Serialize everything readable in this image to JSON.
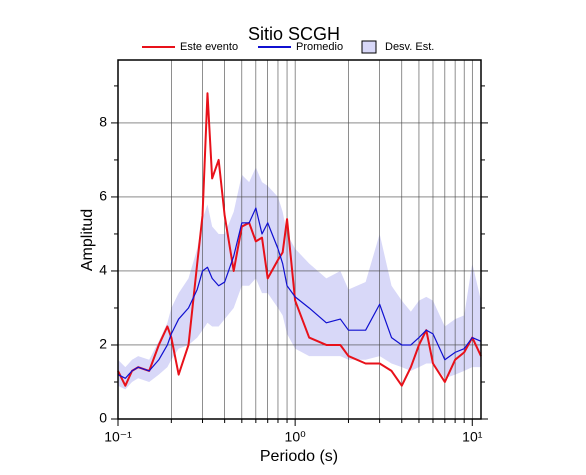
{
  "chart_data": {
    "type": "line",
    "title": "Sitio SCGH",
    "xlabel": "Periodo (s)",
    "ylabel": "Amplitud",
    "xscale": "log",
    "grid": true,
    "xlim": [
      0.1,
      11.2
    ],
    "ylim": [
      0,
      9.7
    ],
    "xticks": [
      {
        "value": 0.1,
        "label": "10⁻¹"
      },
      {
        "value": 1,
        "label": "10⁰"
      },
      {
        "value": 10,
        "label": "10¹"
      }
    ],
    "xminor_ticks": [
      0.2,
      0.3,
      0.4,
      0.5,
      0.6,
      0.7,
      0.8,
      0.9,
      2,
      3,
      4,
      5,
      6,
      7,
      8,
      9
    ],
    "yticks": [
      0,
      2,
      4,
      6,
      8
    ],
    "yminor_ticks": [
      1,
      3,
      5,
      7,
      9
    ],
    "x": [
      0.1,
      0.11,
      0.12,
      0.13,
      0.15,
      0.17,
      0.19,
      0.2,
      0.22,
      0.25,
      0.28,
      0.3,
      0.32,
      0.34,
      0.37,
      0.4,
      0.45,
      0.5,
      0.55,
      0.6,
      0.65,
      0.7,
      0.8,
      0.85,
      0.9,
      1.0,
      1.2,
      1.5,
      1.8,
      2.0,
      2.5,
      3.0,
      3.5,
      4.0,
      4.5,
      5.0,
      5.5,
      6.0,
      7.0,
      8.0,
      9.0,
      10.0,
      11.2
    ],
    "band": {
      "name": "Desv. Est.",
      "color": "#d8d8f8",
      "lower": [
        0.9,
        0.8,
        1.0,
        1.1,
        1.0,
        1.2,
        1.4,
        1.6,
        1.9,
        2.0,
        2.2,
        2.4,
        2.6,
        2.5,
        2.5,
        2.7,
        3.0,
        3.6,
        3.6,
        3.8,
        3.4,
        3.4,
        3.0,
        2.8,
        2.3,
        1.9,
        1.7,
        1.7,
        1.7,
        1.6,
        1.6,
        1.7,
        1.5,
        1.4,
        1.3,
        1.4,
        1.5,
        1.5,
        1.1,
        1.2,
        1.3,
        1.4,
        1.4
      ],
      "upper": [
        1.6,
        1.4,
        1.6,
        1.7,
        1.6,
        2.1,
        2.6,
        3.0,
        3.4,
        3.8,
        4.6,
        5.4,
        5.8,
        5.2,
        5.0,
        5.0,
        5.6,
        6.6,
        6.4,
        6.8,
        6.4,
        6.3,
        6.0,
        5.6,
        5.0,
        4.6,
        4.2,
        3.8,
        4.0,
        3.5,
        3.7,
        5.0,
        3.6,
        3.2,
        2.9,
        3.2,
        3.3,
        3.2,
        2.5,
        2.7,
        2.8,
        4.2,
        3.2
      ]
    },
    "series": [
      {
        "name": "Este evento",
        "color": "#e8111a",
        "values": [
          1.3,
          0.9,
          1.3,
          1.4,
          1.3,
          2.0,
          2.5,
          2.2,
          1.2,
          2.0,
          4.2,
          5.5,
          8.8,
          6.5,
          7.0,
          5.5,
          4.0,
          5.2,
          5.3,
          4.8,
          4.9,
          3.8,
          4.3,
          4.5,
          5.4,
          3.2,
          2.2,
          2.0,
          2.0,
          1.7,
          1.5,
          1.5,
          1.3,
          0.9,
          1.4,
          2.0,
          2.4,
          1.5,
          1.0,
          1.6,
          1.8,
          2.2,
          1.7
        ]
      },
      {
        "name": "Promedio",
        "color": "#1010d0",
        "values": [
          1.2,
          1.1,
          1.3,
          1.4,
          1.3,
          1.6,
          2.0,
          2.3,
          2.7,
          3.0,
          3.5,
          4.0,
          4.1,
          3.8,
          3.6,
          3.7,
          4.4,
          5.3,
          5.3,
          5.7,
          5.0,
          5.3,
          4.6,
          4.2,
          3.6,
          3.3,
          3.0,
          2.6,
          2.7,
          2.4,
          2.4,
          3.1,
          2.2,
          2.0,
          2.0,
          2.2,
          2.4,
          2.3,
          1.6,
          1.8,
          1.9,
          2.2,
          2.1
        ]
      }
    ]
  }
}
